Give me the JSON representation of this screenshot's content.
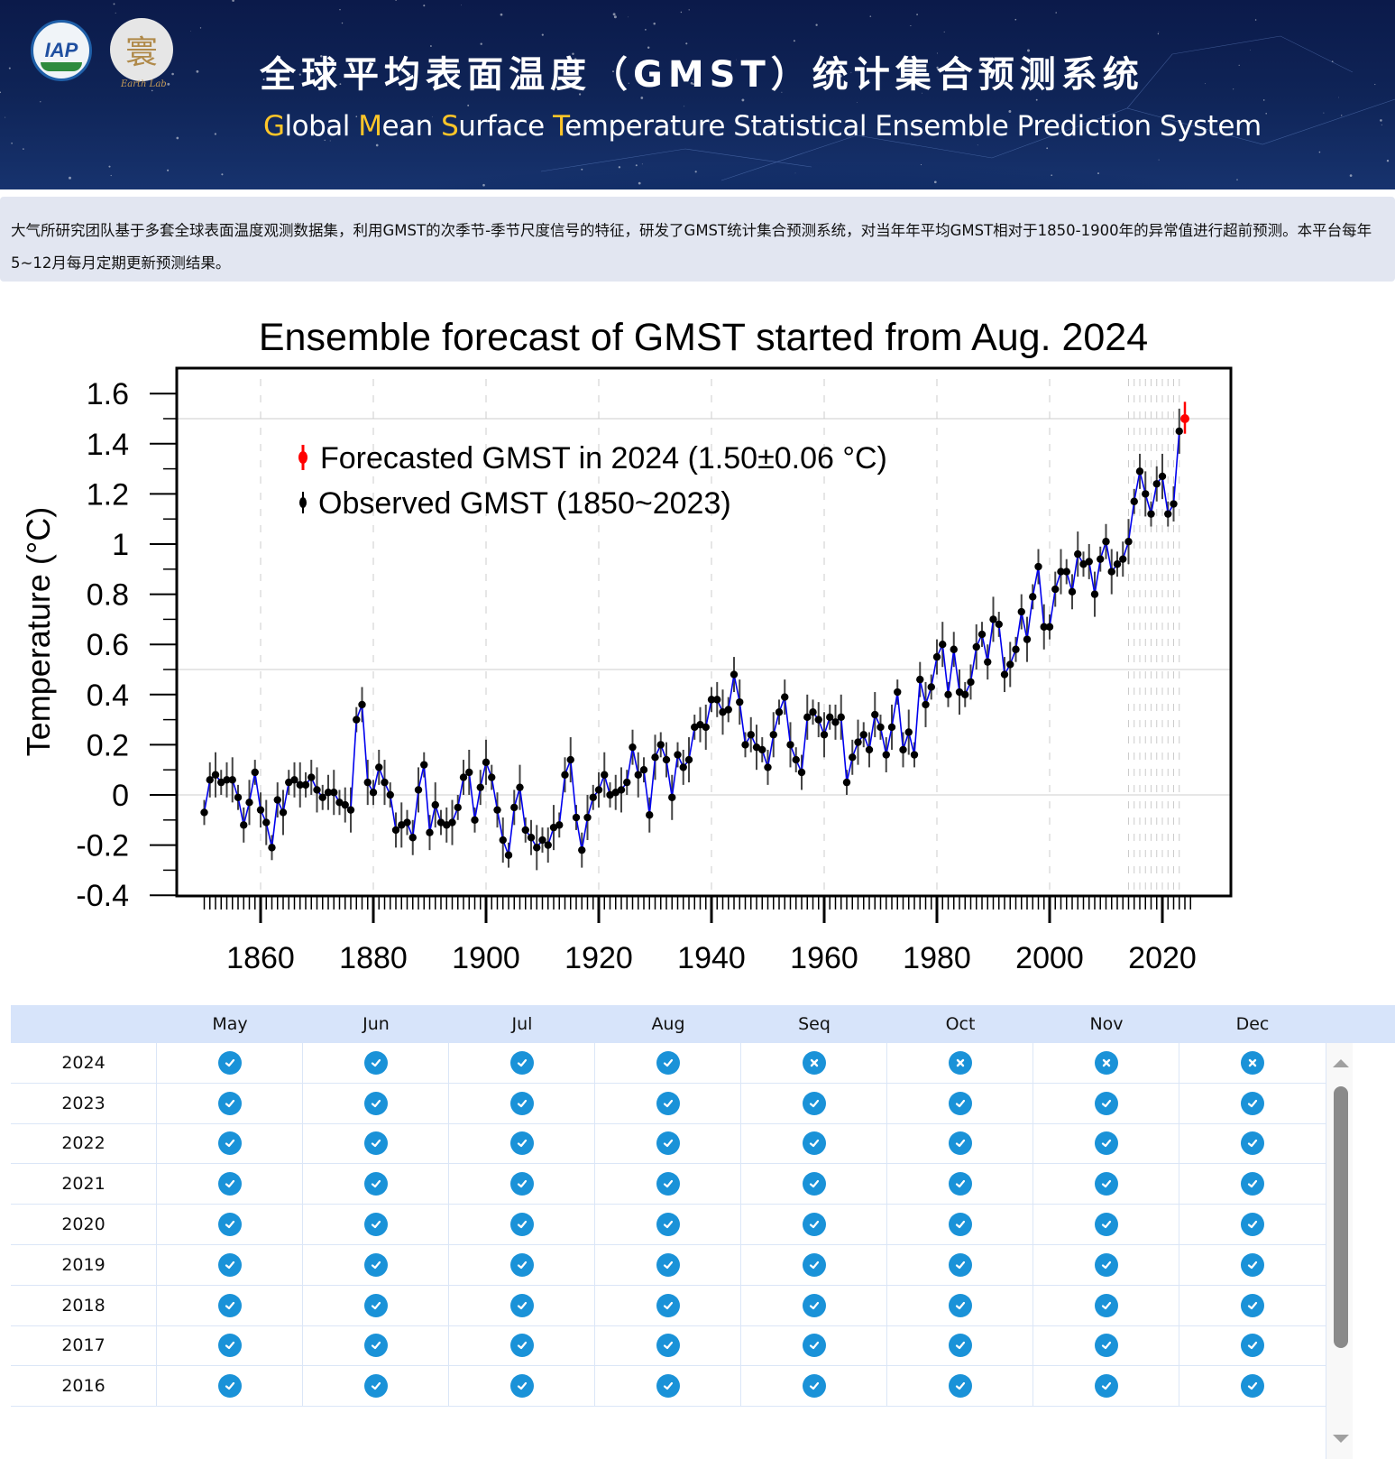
{
  "header": {
    "logo_left": "IAP",
    "logo_right_glyph": "寰",
    "logo_right_caption": "Earth Lab",
    "title_cn": "全球平均表面温度（GMST）统计集合预测系统",
    "title_en_parts": [
      {
        "text": "G",
        "accent": true
      },
      {
        "text": "lobal ",
        "accent": false
      },
      {
        "text": "M",
        "accent": true
      },
      {
        "text": "ean ",
        "accent": false
      },
      {
        "text": "S",
        "accent": true
      },
      {
        "text": "urface ",
        "accent": false
      },
      {
        "text": "T",
        "accent": true
      },
      {
        "text": "emperature Statistical Ensemble Prediction System",
        "accent": false
      }
    ],
    "accent_color": "#ffc629"
  },
  "intro": {
    "text": "大气所研究团队基于多套全球表面温度观测数据集，利用GMST的次季节-季节尺度信号的特征，研发了GMST统计集合预测系统，对当年年平均GMST相对于1850-1900年的异常值进行超前预测。本平台每年5~12月每月定期更新预测结果。"
  },
  "chart_data": {
    "type": "scatter",
    "title": "Ensemble forecast of GMST started from Aug. 2024",
    "xlabel": "",
    "ylabel": "Temperature (°C)",
    "xlim": [
      1846,
      2029
    ],
    "ylim": [
      -0.4,
      1.66
    ],
    "xticks": [
      1860,
      1880,
      1900,
      1920,
      1940,
      1960,
      1980,
      2000,
      2020
    ],
    "yticks": [
      1.6,
      1.4,
      1.2,
      1,
      0.8,
      0.6,
      0.4,
      0.2,
      0,
      -0.2,
      -0.4
    ],
    "ytick_labels": [
      "1.6",
      "1.4",
      "1.2",
      "1",
      "0.8",
      "0.6",
      "0.4",
      "0.2",
      "0",
      "-0.2",
      "-0.4"
    ],
    "hgrid": [
      1.5,
      0.5,
      0
    ],
    "legend": {
      "placement": "top-left",
      "entries": [
        {
          "label": "Forecasted GMST in 2024 (1.50±0.06 °C)",
          "color": "#ff0000"
        },
        {
          "label": "Observed GMST (1850~2023)",
          "color": "#000000"
        }
      ]
    },
    "series": [
      {
        "name": "Observed GMST (1850~2023)",
        "line_color": "#0000ee",
        "marker_color": "#000000",
        "x_start": 1850,
        "values": [
          -0.07,
          0.06,
          0.08,
          0.05,
          0.06,
          0.06,
          -0.01,
          -0.12,
          -0.03,
          0.09,
          -0.06,
          -0.11,
          -0.21,
          -0.02,
          -0.07,
          0.05,
          0.06,
          0.04,
          0.04,
          0.07,
          0.02,
          -0.01,
          0.01,
          0.01,
          -0.03,
          -0.04,
          -0.06,
          0.3,
          0.36,
          0.05,
          0.01,
          0.11,
          0.05,
          0.0,
          -0.14,
          -0.12,
          -0.11,
          -0.17,
          0.02,
          0.12,
          -0.15,
          -0.04,
          -0.11,
          -0.12,
          -0.11,
          -0.05,
          0.07,
          0.09,
          -0.1,
          0.03,
          0.13,
          0.07,
          -0.06,
          -0.18,
          -0.24,
          -0.05,
          0.03,
          -0.14,
          -0.17,
          -0.21,
          -0.18,
          -0.2,
          -0.13,
          -0.12,
          0.08,
          0.14,
          -0.09,
          -0.22,
          -0.09,
          -0.01,
          0.02,
          0.08,
          0.0,
          0.01,
          0.02,
          0.05,
          0.19,
          0.08,
          0.1,
          -0.08,
          0.15,
          0.2,
          0.14,
          -0.01,
          0.16,
          0.11,
          0.14,
          0.27,
          0.28,
          0.27,
          0.38,
          0.38,
          0.33,
          0.34,
          0.48,
          0.37,
          0.2,
          0.24,
          0.19,
          0.18,
          0.11,
          0.24,
          0.33,
          0.39,
          0.2,
          0.14,
          0.09,
          0.31,
          0.33,
          0.3,
          0.24,
          0.31,
          0.29,
          0.31,
          0.05,
          0.15,
          0.21,
          0.24,
          0.18,
          0.32,
          0.27,
          0.16,
          0.27,
          0.41,
          0.18,
          0.25,
          0.16,
          0.46,
          0.36,
          0.43,
          0.55,
          0.6,
          0.4,
          0.58,
          0.41,
          0.4,
          0.45,
          0.59,
          0.64,
          0.53,
          0.7,
          0.68,
          0.48,
          0.52,
          0.58,
          0.73,
          0.62,
          0.79,
          0.91,
          0.67,
          0.67,
          0.82,
          0.89,
          0.89,
          0.81,
          0.96,
          0.92,
          0.93,
          0.8,
          0.94,
          1.01,
          0.89,
          0.92,
          0.94,
          1.01,
          1.17,
          1.29,
          1.2,
          1.12,
          1.24,
          1.27,
          1.12,
          1.16,
          1.45
        ],
        "error": 0.05
      },
      {
        "name": "Forecasted GMST in 2024",
        "color": "#ff0000",
        "x": [
          2024
        ],
        "values": [
          1.5
        ],
        "error": [
          0.06
        ]
      }
    ]
  },
  "table": {
    "columns": [
      "",
      "May",
      "Jun",
      "Jul",
      "Aug",
      "Seq",
      "Oct",
      "Nov",
      "Dec"
    ],
    "rows": [
      {
        "year": "2024",
        "status": [
          "check",
          "check",
          "check",
          "check",
          "cross",
          "cross",
          "cross",
          "cross"
        ]
      },
      {
        "year": "2023",
        "status": [
          "check",
          "check",
          "check",
          "check",
          "check",
          "check",
          "check",
          "check"
        ]
      },
      {
        "year": "2022",
        "status": [
          "check",
          "check",
          "check",
          "check",
          "check",
          "check",
          "check",
          "check"
        ]
      },
      {
        "year": "2021",
        "status": [
          "check",
          "check",
          "check",
          "check",
          "check",
          "check",
          "check",
          "check"
        ]
      },
      {
        "year": "2020",
        "status": [
          "check",
          "check",
          "check",
          "check",
          "check",
          "check",
          "check",
          "check"
        ]
      },
      {
        "year": "2019",
        "status": [
          "check",
          "check",
          "check",
          "check",
          "check",
          "check",
          "check",
          "check"
        ]
      },
      {
        "year": "2018",
        "status": [
          "check",
          "check",
          "check",
          "check",
          "check",
          "check",
          "check",
          "check"
        ]
      },
      {
        "year": "2017",
        "status": [
          "check",
          "check",
          "check",
          "check",
          "check",
          "check",
          "check",
          "check"
        ]
      },
      {
        "year": "2016",
        "status": [
          "check",
          "check",
          "check",
          "check",
          "check",
          "check",
          "check",
          "check"
        ]
      }
    ],
    "icon_color": "#1a92d8"
  }
}
